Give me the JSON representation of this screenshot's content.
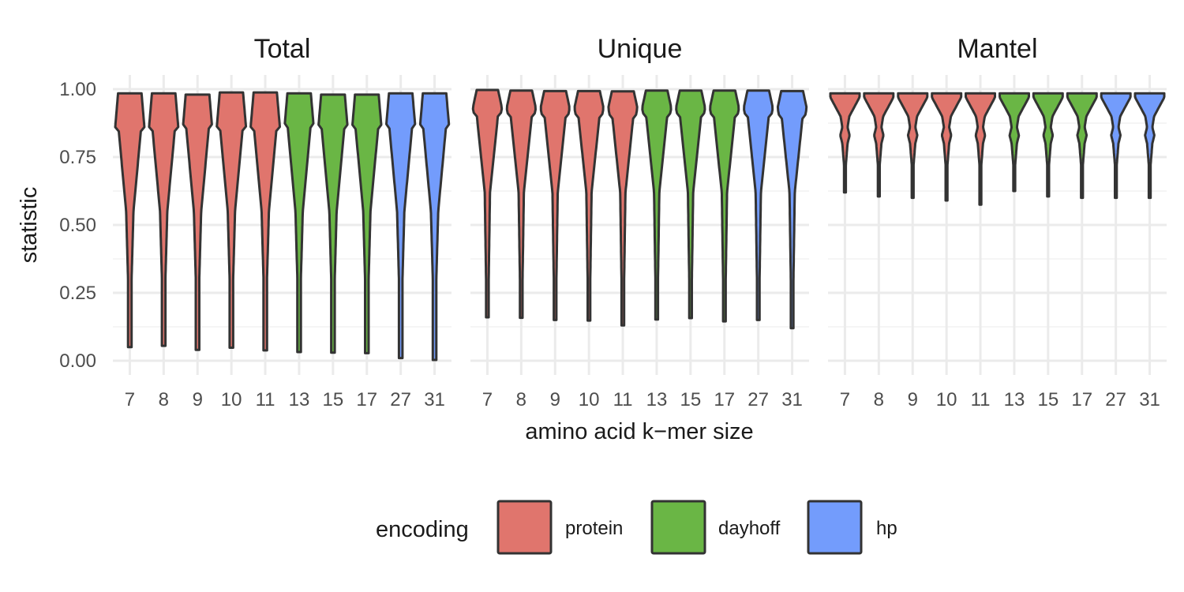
{
  "chart_data": {
    "type": "violin",
    "xlabel": "amino acid k−mer size",
    "ylabel": "statistic",
    "ylim": [
      0,
      1
    ],
    "y_ticks": [
      "0.00",
      "0.25",
      "0.50",
      "0.75",
      "1.00"
    ],
    "y_tick_values": [
      0,
      0.25,
      0.5,
      0.75,
      1.0
    ],
    "categories": [
      "7",
      "8",
      "9",
      "10",
      "11",
      "13",
      "15",
      "17",
      "27",
      "31"
    ],
    "category_encoding": [
      "protein",
      "protein",
      "protein",
      "protein",
      "protein",
      "dayhoff",
      "dayhoff",
      "dayhoff",
      "hp",
      "hp"
    ],
    "grid": true,
    "legend": {
      "title": "encoding",
      "position": "bottom",
      "entries": [
        {
          "name": "protein",
          "color": "#E0756D"
        },
        {
          "name": "dayhoff",
          "color": "#6AB645"
        },
        {
          "name": "hp",
          "color": "#739CFC"
        }
      ]
    },
    "facets": [
      {
        "title": "Total",
        "shape": "total",
        "min": [
          0.05,
          0.055,
          0.04,
          0.048,
          0.038,
          0.032,
          0.03,
          0.028,
          0.01,
          0.003
        ],
        "max": [
          0.985,
          0.985,
          0.98,
          0.988,
          0.988,
          0.985,
          0.98,
          0.98,
          0.985,
          0.985
        ]
      },
      {
        "title": "Unique",
        "shape": "unique",
        "min": [
          0.16,
          0.158,
          0.15,
          0.148,
          0.13,
          0.152,
          0.157,
          0.145,
          0.15,
          0.12
        ],
        "max": [
          0.997,
          0.995,
          0.993,
          0.993,
          0.992,
          0.995,
          0.995,
          0.995,
          0.995,
          0.993
        ]
      },
      {
        "title": "Mantel",
        "shape": "mantel",
        "min": [
          0.62,
          0.605,
          0.6,
          0.59,
          0.575,
          0.625,
          0.605,
          0.6,
          0.6,
          0.6
        ],
        "max": [
          0.985,
          0.985,
          0.985,
          0.985,
          0.985,
          0.985,
          0.985,
          0.985,
          0.985,
          0.985
        ]
      }
    ]
  }
}
